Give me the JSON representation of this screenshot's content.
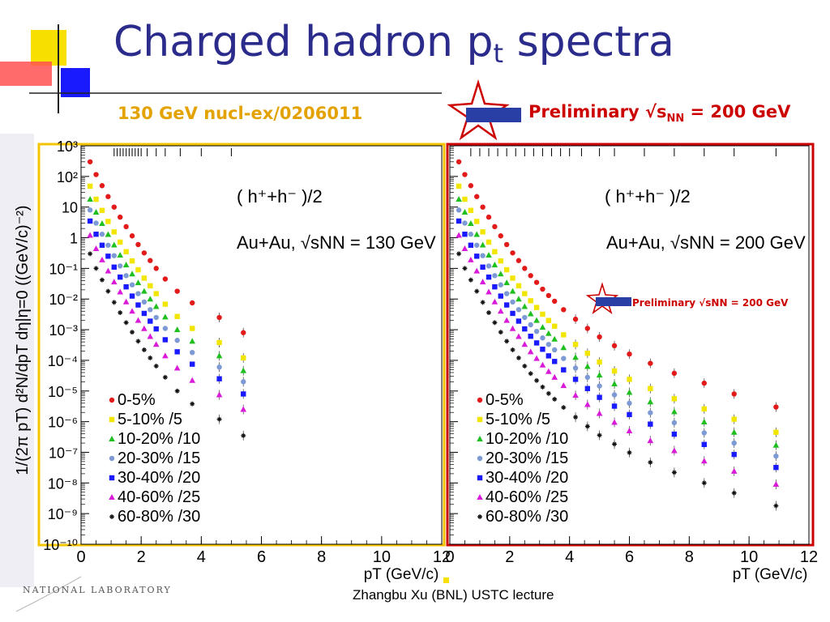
{
  "slide": {
    "title_main": "Charged hadron p",
    "title_sub": "t",
    "title_tail": " spectra",
    "subtitle_130": "130 GeV nucl-ex/0206011",
    "prelim_text": "Preliminary √s",
    "prelim_sub": "NN",
    "prelim_tail": " = 200 GeV",
    "star_logo": "STAR",
    "footer": "Zhangbu Xu (BNL) USTC lecture",
    "lab_name": "NATIONAL LABORATORY",
    "colors": {
      "title": "#2b2b8c",
      "subtitle": "#e3a200",
      "prelim": "#cc0000",
      "frame_130": "#f5c400",
      "frame_200": "#cc0000"
    }
  },
  "chart_data": [
    {
      "type": "scatter",
      "log_y": true,
      "ylabel": "1/(2π pT) d²N/dpT dη|η=0 ((GeV/c)⁻²)",
      "xlabel": "pT (GeV/c)",
      "xlim": [
        0,
        12
      ],
      "ylim": [
        1e-10,
        1000
      ],
      "x_ticks": [
        "0",
        "2",
        "4",
        "6",
        "8",
        "10",
        "12"
      ],
      "y_ticks": [
        "10⁻¹⁰",
        "10⁻⁹",
        "10⁻⁸",
        "10⁻⁷",
        "10⁻⁶",
        "10⁻⁵",
        "10⁻⁴",
        "10⁻³",
        "10⁻²",
        "10⁻¹",
        "1",
        "10",
        "10²",
        "10³"
      ],
      "annotation_1": "( h⁺+h⁻ )/2",
      "annotation_2": "Au+Au, √sNN = 130 GeV",
      "legend_position": "bottom-left",
      "series": [
        {
          "name": "0-5%",
          "color": "#e31a1a",
          "marker": "circle",
          "x": [
            0.3,
            0.5,
            0.7,
            0.9,
            1.1,
            1.3,
            1.5,
            1.7,
            1.9,
            2.1,
            2.3,
            2.5,
            2.8,
            3.2,
            3.7,
            4.6,
            5.4
          ],
          "y": [
            300,
            115,
            50,
            22,
            10,
            4.7,
            2.3,
            1.15,
            0.6,
            0.32,
            0.18,
            0.1,
            0.045,
            0.018,
            0.0075,
            0.0025,
            0.0008
          ]
        },
        {
          "name": "5-10% /5",
          "color": "#f2e600",
          "marker": "square",
          "x": [
            0.3,
            0.5,
            0.7,
            0.9,
            1.1,
            1.3,
            1.5,
            1.7,
            1.9,
            2.1,
            2.3,
            2.5,
            2.8,
            3.2,
            3.7,
            4.6,
            5.4
          ],
          "y": [
            48,
            18,
            7.8,
            3.4,
            1.55,
            0.72,
            0.35,
            0.175,
            0.09,
            0.048,
            0.027,
            0.015,
            0.0068,
            0.0027,
            0.0011,
            0.00038,
            0.00012
          ]
        },
        {
          "name": "10-20% /10",
          "color": "#1fbf1f",
          "marker": "triangle",
          "x": [
            0.3,
            0.5,
            0.7,
            0.9,
            1.1,
            1.3,
            1.5,
            1.7,
            1.9,
            2.1,
            2.3,
            2.5,
            2.8,
            3.2,
            3.7,
            4.6,
            5.4
          ],
          "y": [
            18,
            6.8,
            2.9,
            1.28,
            0.58,
            0.27,
            0.13,
            0.066,
            0.034,
            0.018,
            0.01,
            0.0057,
            0.0026,
            0.001,
            0.00042,
            0.00014,
            4.6e-05
          ]
        },
        {
          "name": "20-30% /15",
          "color": "#7d9ad4",
          "marker": "circle",
          "x": [
            0.3,
            0.5,
            0.7,
            0.9,
            1.1,
            1.3,
            1.5,
            1.7,
            1.9,
            2.1,
            2.3,
            2.5,
            2.8,
            3.2,
            3.7,
            4.6,
            5.4
          ],
          "y": [
            8,
            3,
            1.3,
            0.57,
            0.26,
            0.12,
            0.058,
            0.029,
            0.015,
            0.008,
            0.0045,
            0.0025,
            0.0011,
            0.00045,
            0.00018,
            6e-05,
            2e-05
          ]
        },
        {
          "name": "30-40% /20",
          "color": "#1a1aff",
          "marker": "square",
          "x": [
            0.3,
            0.5,
            0.7,
            0.9,
            1.1,
            1.3,
            1.5,
            1.7,
            1.9,
            2.1,
            2.3,
            2.5,
            2.8,
            3.2,
            3.7,
            4.6,
            5.4
          ],
          "y": [
            3.5,
            1.3,
            0.57,
            0.25,
            0.11,
            0.052,
            0.025,
            0.0125,
            0.0064,
            0.0034,
            0.0019,
            0.00106,
            0.00047,
            0.00019,
            7.5e-05,
            2.5e-05,
            8e-06
          ]
        },
        {
          "name": "40-60% /25",
          "color": "#d91ad9",
          "marker": "triangle",
          "x": [
            0.3,
            0.5,
            0.7,
            0.9,
            1.1,
            1.3,
            1.5,
            1.7,
            1.9,
            2.1,
            2.3,
            2.5,
            2.8,
            3.2,
            3.7,
            4.6,
            5.4
          ],
          "y": [
            1.2,
            0.44,
            0.19,
            0.082,
            0.036,
            0.017,
            0.0081,
            0.004,
            0.002,
            0.00108,
            0.0006,
            0.00033,
            0.00014,
            5.6e-05,
            2.2e-05,
            7.5e-06,
            2.5e-06
          ]
        },
        {
          "name": "60-80% /30",
          "color": "#111111",
          "marker": "star",
          "x": [
            0.3,
            0.5,
            0.7,
            0.9,
            1.1,
            1.3,
            1.5,
            1.7,
            1.9,
            2.1,
            2.3,
            2.5,
            2.8,
            3.2,
            3.7,
            4.6,
            5.4
          ],
          "y": [
            0.3,
            0.1,
            0.042,
            0.018,
            0.0078,
            0.0036,
            0.0017,
            0.00083,
            0.00042,
            0.00022,
            0.00012,
            6.5e-05,
            2.8e-05,
            1e-05,
            3.8e-06,
            1.2e-06,
            3.5e-07
          ]
        }
      ]
    },
    {
      "type": "scatter",
      "log_y": true,
      "xlabel": "pT (GeV/c)",
      "xlim": [
        0,
        12
      ],
      "ylim": [
        1e-10,
        1000
      ],
      "x_ticks": [
        "0",
        "2",
        "4",
        "6",
        "8",
        "10",
        "12"
      ],
      "annotation_1": "( h⁺+h⁻ )/2",
      "annotation_2": "Au+Au, √sNN = 200 GeV",
      "inner_label": "Preliminary √sNN = 200 GeV",
      "legend_position": "bottom-left",
      "series": [
        {
          "name": "0-5%",
          "color": "#e31a1a",
          "marker": "circle",
          "x": [
            0.3,
            0.5,
            0.7,
            0.9,
            1.1,
            1.3,
            1.5,
            1.7,
            1.9,
            2.1,
            2.3,
            2.5,
            2.7,
            2.9,
            3.1,
            3.3,
            3.5,
            3.8,
            4.2,
            4.6,
            5.0,
            5.5,
            6.0,
            6.7,
            7.5,
            8.5,
            9.5,
            10.9
          ],
          "y": [
            300,
            115,
            50,
            22,
            10,
            4.7,
            2.3,
            1.15,
            0.6,
            0.32,
            0.18,
            0.1,
            0.058,
            0.035,
            0.021,
            0.013,
            0.0085,
            0.0045,
            0.0022,
            0.0011,
            0.00058,
            0.0003,
            0.00016,
            8e-05,
            3.8e-05,
            1.8e-05,
            8e-06,
            3e-06
          ]
        },
        {
          "name": "5-10% /5",
          "color": "#f2e600",
          "marker": "square",
          "x": [
            0.3,
            0.5,
            0.7,
            0.9,
            1.1,
            1.3,
            1.5,
            1.7,
            1.9,
            2.1,
            2.3,
            2.5,
            2.7,
            2.9,
            3.1,
            3.3,
            3.5,
            3.8,
            4.2,
            4.6,
            5.0,
            5.5,
            6.0,
            6.7,
            7.5,
            8.5,
            9.5,
            10.9
          ],
          "y": [
            48,
            18,
            7.8,
            3.4,
            1.55,
            0.72,
            0.35,
            0.175,
            0.09,
            0.048,
            0.027,
            0.015,
            0.0088,
            0.0053,
            0.0032,
            0.002,
            0.0013,
            0.00068,
            0.00033,
            0.00017,
            8.8e-05,
            4.5e-05,
            2.4e-05,
            1.2e-05,
            5.6e-06,
            2.6e-06,
            1.2e-06,
            4.5e-07
          ]
        },
        {
          "name": "10-20% /10",
          "color": "#1fbf1f",
          "marker": "triangle",
          "x": [
            0.3,
            0.5,
            0.7,
            0.9,
            1.1,
            1.3,
            1.5,
            1.7,
            1.9,
            2.1,
            2.3,
            2.5,
            2.7,
            2.9,
            3.1,
            3.3,
            3.5,
            3.8,
            4.2,
            4.6,
            5.0,
            5.5,
            6.0,
            6.7,
            7.5,
            8.5,
            9.5,
            10.9
          ],
          "y": [
            18,
            6.8,
            2.9,
            1.28,
            0.58,
            0.27,
            0.13,
            0.066,
            0.034,
            0.018,
            0.01,
            0.0057,
            0.0033,
            0.002,
            0.0012,
            0.00075,
            0.00049,
            0.00026,
            0.000125,
            6.3e-05,
            3.3e-05,
            1.7e-05,
            9e-06,
            4.4e-06,
            2.1e-06,
            9.8e-07,
            4.5e-07,
            1.7e-07
          ]
        },
        {
          "name": "20-30% /15",
          "color": "#7d9ad4",
          "marker": "circle",
          "x": [
            0.3,
            0.5,
            0.7,
            0.9,
            1.1,
            1.3,
            1.5,
            1.7,
            1.9,
            2.1,
            2.3,
            2.5,
            2.7,
            2.9,
            3.1,
            3.3,
            3.5,
            3.8,
            4.2,
            4.6,
            5.0,
            5.5,
            6.0,
            6.7,
            7.5,
            8.5,
            9.5,
            10.9
          ],
          "y": [
            8,
            3,
            1.3,
            0.57,
            0.26,
            0.12,
            0.058,
            0.029,
            0.015,
            0.008,
            0.0045,
            0.0025,
            0.00145,
            0.00088,
            0.00054,
            0.00033,
            0.00022,
            0.000115,
            5.6e-05,
            2.8e-05,
            1.45e-05,
            7.5e-06,
            4e-06,
            1.95e-06,
            9.2e-07,
            4.3e-07,
            2e-07,
            7.5e-08
          ]
        },
        {
          "name": "30-40% /20",
          "color": "#1a1aff",
          "marker": "square",
          "x": [
            0.3,
            0.5,
            0.7,
            0.9,
            1.1,
            1.3,
            1.5,
            1.7,
            1.9,
            2.1,
            2.3,
            2.5,
            2.7,
            2.9,
            3.1,
            3.3,
            3.5,
            3.8,
            4.2,
            4.6,
            5.0,
            5.5,
            6.0,
            6.7,
            7.5,
            8.5,
            9.5,
            10.9
          ],
          "y": [
            3.5,
            1.3,
            0.57,
            0.25,
            0.11,
            0.052,
            0.025,
            0.0125,
            0.0064,
            0.0034,
            0.0019,
            0.00106,
            0.00061,
            0.00037,
            0.00023,
            0.00014,
            9.2e-05,
            4.9e-05,
            2.4e-05,
            1.2e-05,
            6.2e-06,
            3.2e-06,
            1.7e-06,
            8.3e-07,
            3.9e-07,
            1.8e-07,
            8.5e-08,
            3.2e-08
          ]
        },
        {
          "name": "40-60% /25",
          "color": "#d91ad9",
          "marker": "triangle",
          "x": [
            0.3,
            0.5,
            0.7,
            0.9,
            1.1,
            1.3,
            1.5,
            1.7,
            1.9,
            2.1,
            2.3,
            2.5,
            2.7,
            2.9,
            3.1,
            3.3,
            3.5,
            3.8,
            4.2,
            4.6,
            5.0,
            5.5,
            6.0,
            6.7,
            7.5,
            8.5,
            9.5,
            10.9
          ],
          "y": [
            1.2,
            0.44,
            0.19,
            0.082,
            0.036,
            0.017,
            0.0081,
            0.004,
            0.002,
            0.00108,
            0.0006,
            0.00033,
            0.00019,
            0.000115,
            7e-05,
            4.3e-05,
            2.8e-05,
            1.5e-05,
            7.2e-06,
            3.6e-06,
            1.85e-06,
            9.5e-07,
            5e-07,
            2.4e-07,
            1.13e-07,
            5.2e-08,
            2.4e-08,
            9e-09
          ]
        },
        {
          "name": "60-80% /30",
          "color": "#111111",
          "marker": "star",
          "x": [
            0.3,
            0.5,
            0.7,
            0.9,
            1.1,
            1.3,
            1.5,
            1.7,
            1.9,
            2.1,
            2.3,
            2.5,
            2.7,
            2.9,
            3.1,
            3.3,
            3.5,
            3.8,
            4.2,
            4.6,
            5.0,
            5.5,
            6.0,
            6.7,
            7.5,
            8.5,
            9.5,
            10.9
          ],
          "y": [
            0.3,
            0.1,
            0.042,
            0.018,
            0.0078,
            0.0036,
            0.0017,
            0.00083,
            0.00042,
            0.00022,
            0.00012,
            6.5e-05,
            3.7e-05,
            2.2e-05,
            1.35e-05,
            8.3e-06,
            5.4e-06,
            2.9e-06,
            1.4e-06,
            7e-07,
            3.6e-07,
            1.85e-07,
            9.8e-08,
            4.7e-08,
            2.2e-08,
            1e-08,
            4.7e-09,
            1.8e-09
          ]
        }
      ]
    }
  ]
}
